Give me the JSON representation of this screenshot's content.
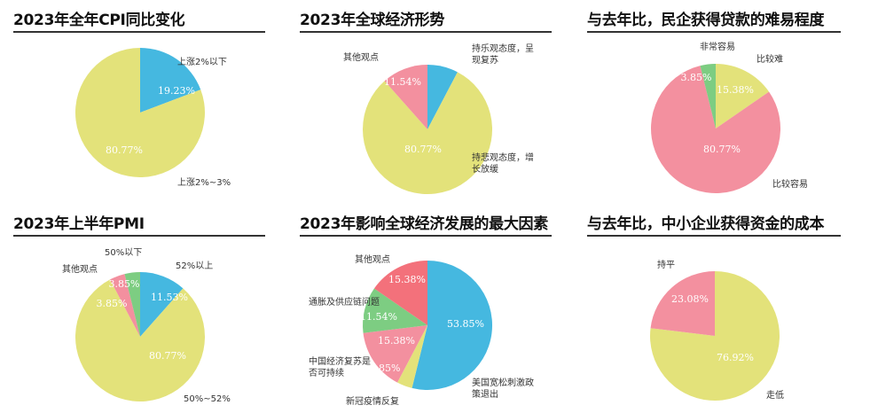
{
  "colors": {
    "yellow": "#e3e27a",
    "blue": "#45b8e0",
    "pink": "#f3909f",
    "green": "#7dcd82",
    "red": "#f3717b"
  },
  "chart_data": [
    {
      "type": "pie",
      "title": "2023年全年CPI同比变化",
      "slices": [
        {
          "label": "上涨2%以下",
          "value": 19.23,
          "pct_label": "19.23%",
          "color": "#45b8e0"
        },
        {
          "label": "上涨2%~3%",
          "value": 80.77,
          "pct_label": "80.77%",
          "color": "#e3e27a"
        }
      ]
    },
    {
      "type": "pie",
      "title": "2023年全球经济形势",
      "slices": [
        {
          "label": "持乐观态度，呈现复苏",
          "value": 7.69,
          "pct_label": "7.69%",
          "color": "#45b8e0"
        },
        {
          "label": "持悲观态度，增长放缓",
          "value": 80.77,
          "pct_label": "80.77%",
          "color": "#e3e27a"
        },
        {
          "label": "其他观点",
          "value": 11.54,
          "pct_label": "11.54%",
          "color": "#f3909f"
        }
      ]
    },
    {
      "type": "pie",
      "title": "与去年比，民企获得贷款的难易程度",
      "slices": [
        {
          "label": "比较难",
          "value": 15.38,
          "pct_label": "15.38%",
          "color": "#e3e27a"
        },
        {
          "label": "比较容易",
          "value": 80.77,
          "pct_label": "80.77%",
          "color": "#f3909f"
        },
        {
          "label": "非常容易",
          "value": 3.85,
          "pct_label": "3.85%",
          "color": "#7dcd82"
        }
      ]
    },
    {
      "type": "pie",
      "title": "2023年上半年PMI",
      "slices": [
        {
          "label": "52%以上",
          "value": 11.53,
          "pct_label": "11.53%",
          "color": "#45b8e0"
        },
        {
          "label": "50%~52%",
          "value": 80.77,
          "pct_label": "80.77%",
          "color": "#e3e27a"
        },
        {
          "label": "其他观点",
          "value": 3.85,
          "pct_label": "3.85%",
          "color": "#f3909f"
        },
        {
          "label": "50%以下",
          "value": 3.85,
          "pct_label": "3.85%",
          "color": "#7dcd82"
        }
      ]
    },
    {
      "type": "pie",
      "title": "2023年影响全球经济发展的最大因素",
      "slices": [
        {
          "label": "美国宽松刺激政策退出",
          "value": 53.85,
          "pct_label": "53.85%",
          "color": "#45b8e0"
        },
        {
          "label": "新冠疫情反复",
          "value": 3.85,
          "pct_label": "3.85%",
          "color": "#e3e27a"
        },
        {
          "label": "中国经济复苏是否可持续",
          "value": 15.38,
          "pct_label": "15.38%",
          "color": "#f3909f"
        },
        {
          "label": "通胀及供应链问题",
          "value": 11.54,
          "pct_label": "11.54%",
          "color": "#7dcd82"
        },
        {
          "label": "其他观点",
          "value": 15.38,
          "pct_label": "15.38%",
          "color": "#f3717b"
        }
      ]
    },
    {
      "type": "pie",
      "title": "与去年比，中小企业获得资金的成本",
      "slices": [
        {
          "label": "走低",
          "value": 76.92,
          "pct_label": "76.92%",
          "color": "#e3e27a"
        },
        {
          "label": "持平",
          "value": 23.08,
          "pct_label": "23.08%",
          "color": "#f3909f"
        }
      ]
    }
  ]
}
